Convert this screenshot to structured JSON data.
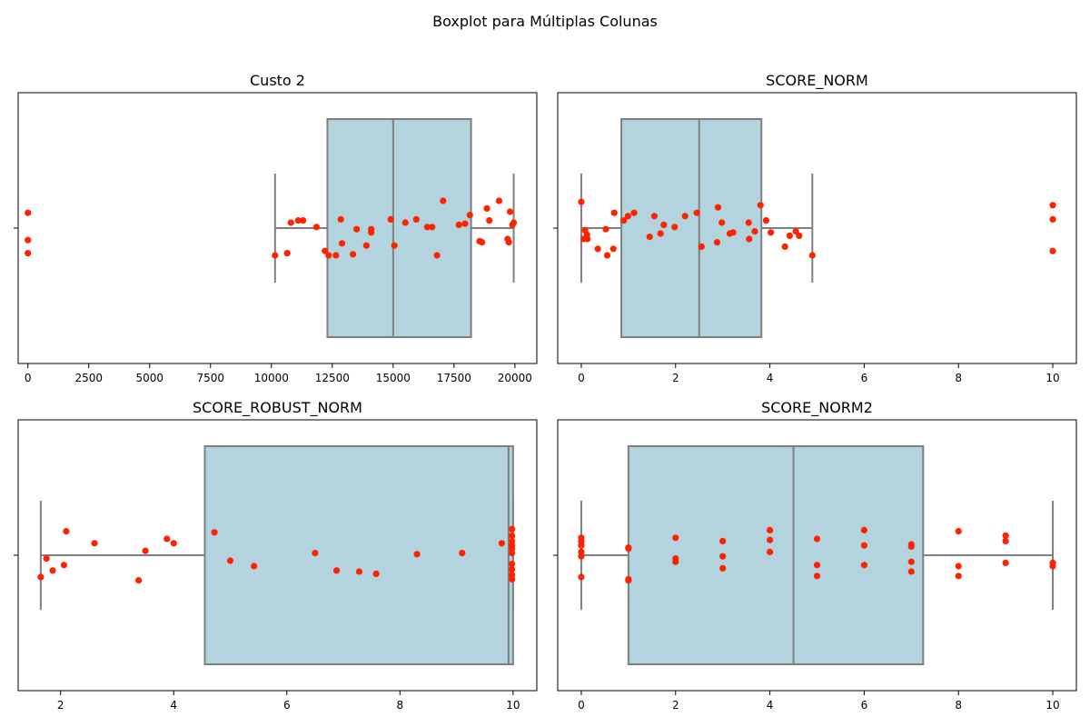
{
  "figure": {
    "title": "Boxplot para Múltiplas Colunas"
  },
  "colors": {
    "box_fill": "#b3d4de",
    "box_edge": "#7f7f7f",
    "points": "#ff2200",
    "axes": "#000000"
  },
  "chart_data": [
    {
      "type": "boxplot",
      "title": "Custo 2",
      "xlim": [
        -400,
        20900
      ],
      "xticks": [
        0,
        2500,
        5000,
        7500,
        10000,
        12500,
        15000,
        17500,
        20000
      ],
      "box": {
        "whisker_low": 10150,
        "q1": 12300,
        "median": 15000,
        "q3": 18200,
        "whisker_high": 19950
      },
      "points": [
        {
          "x": 0,
          "jitter": 0.14
        },
        {
          "x": 0,
          "jitter": -0.11
        },
        {
          "x": 0,
          "jitter": -0.23
        },
        {
          "x": 10150,
          "jitter": -0.25
        },
        {
          "x": 10650,
          "jitter": -0.23
        },
        {
          "x": 10800,
          "jitter": 0.05
        },
        {
          "x": 11100,
          "jitter": 0.07
        },
        {
          "x": 11300,
          "jitter": 0.07
        },
        {
          "x": 11850,
          "jitter": 0.01
        },
        {
          "x": 12200,
          "jitter": -0.21
        },
        {
          "x": 12350,
          "jitter": -0.25
        },
        {
          "x": 12650,
          "jitter": -0.25
        },
        {
          "x": 12850,
          "jitter": 0.08
        },
        {
          "x": 12900,
          "jitter": -0.14
        },
        {
          "x": 13350,
          "jitter": -0.24
        },
        {
          "x": 13500,
          "jitter": -0.01
        },
        {
          "x": 13900,
          "jitter": -0.16
        },
        {
          "x": 14100,
          "jitter": -0.04
        },
        {
          "x": 14100,
          "jitter": -0.01
        },
        {
          "x": 14900,
          "jitter": 0.08
        },
        {
          "x": 15050,
          "jitter": -0.16
        },
        {
          "x": 15500,
          "jitter": 0.05
        },
        {
          "x": 15950,
          "jitter": 0.08
        },
        {
          "x": 16400,
          "jitter": 0.01
        },
        {
          "x": 16600,
          "jitter": 0.01
        },
        {
          "x": 16800,
          "jitter": -0.25
        },
        {
          "x": 17050,
          "jitter": 0.25
        },
        {
          "x": 17700,
          "jitter": 0.03
        },
        {
          "x": 17950,
          "jitter": 0.04
        },
        {
          "x": 18150,
          "jitter": 0.12
        },
        {
          "x": 18550,
          "jitter": -0.12
        },
        {
          "x": 18650,
          "jitter": -0.13
        },
        {
          "x": 18850,
          "jitter": 0.18
        },
        {
          "x": 18950,
          "jitter": 0.07
        },
        {
          "x": 19350,
          "jitter": 0.25
        },
        {
          "x": 19700,
          "jitter": -0.1
        },
        {
          "x": 19750,
          "jitter": -0.13
        },
        {
          "x": 19800,
          "jitter": 0.15
        },
        {
          "x": 19900,
          "jitter": 0.03
        },
        {
          "x": 19950,
          "jitter": 0.05
        }
      ]
    },
    {
      "type": "boxplot",
      "title": "SCORE_NORM",
      "xlim": [
        -0.5,
        10.5
      ],
      "xticks": [
        0,
        2,
        4,
        6,
        8,
        10
      ],
      "box": {
        "whisker_low": 0,
        "q1": 0.85,
        "median": 2.5,
        "q3": 3.82,
        "whisker_high": 4.9
      },
      "points": [
        {
          "x": 0.0,
          "jitter": 0.24
        },
        {
          "x": 0.05,
          "jitter": -0.1
        },
        {
          "x": 0.08,
          "jitter": -0.02
        },
        {
          "x": 0.12,
          "jitter": -0.06
        },
        {
          "x": 0.13,
          "jitter": -0.1
        },
        {
          "x": 0.35,
          "jitter": -0.19
        },
        {
          "x": 0.52,
          "jitter": -0.01
        },
        {
          "x": 0.55,
          "jitter": -0.25
        },
        {
          "x": 0.68,
          "jitter": -0.19
        },
        {
          "x": 0.7,
          "jitter": 0.14
        },
        {
          "x": 0.9,
          "jitter": 0.07
        },
        {
          "x": 0.99,
          "jitter": 0.11
        },
        {
          "x": 1.12,
          "jitter": 0.14
        },
        {
          "x": 1.45,
          "jitter": -0.08
        },
        {
          "x": 1.55,
          "jitter": 0.11
        },
        {
          "x": 1.68,
          "jitter": -0.05
        },
        {
          "x": 1.75,
          "jitter": 0.03
        },
        {
          "x": 1.98,
          "jitter": 0.01
        },
        {
          "x": 2.2,
          "jitter": 0.11
        },
        {
          "x": 2.45,
          "jitter": 0.14
        },
        {
          "x": 2.55,
          "jitter": -0.17
        },
        {
          "x": 2.88,
          "jitter": -0.13
        },
        {
          "x": 2.9,
          "jitter": 0.19
        },
        {
          "x": 2.98,
          "jitter": 0.05
        },
        {
          "x": 3.15,
          "jitter": -0.05
        },
        {
          "x": 3.22,
          "jitter": -0.04
        },
        {
          "x": 3.55,
          "jitter": 0.05
        },
        {
          "x": 3.56,
          "jitter": -0.1
        },
        {
          "x": 3.68,
          "jitter": -0.03
        },
        {
          "x": 3.8,
          "jitter": 0.21
        },
        {
          "x": 3.92,
          "jitter": 0.07
        },
        {
          "x": 4.02,
          "jitter": -0.04
        },
        {
          "x": 4.32,
          "jitter": -0.17
        },
        {
          "x": 4.42,
          "jitter": -0.07
        },
        {
          "x": 4.55,
          "jitter": -0.03
        },
        {
          "x": 4.62,
          "jitter": -0.07
        },
        {
          "x": 4.9,
          "jitter": -0.25
        },
        {
          "x": 10,
          "jitter": 0.21
        },
        {
          "x": 10,
          "jitter": 0.08
        },
        {
          "x": 10,
          "jitter": -0.21
        }
      ]
    },
    {
      "type": "boxplot",
      "title": "SCORE_ROBUST_NORM",
      "xlim": [
        1.25,
        10.42
      ],
      "xticks": [
        2,
        4,
        6,
        8,
        10
      ],
      "box": {
        "whisker_low": 1.65,
        "q1": 4.55,
        "median": 9.92,
        "q3": 10.0,
        "whisker_high": 10.0
      },
      "points": [
        {
          "x": 1.65,
          "jitter": -0.2
        },
        {
          "x": 1.75,
          "jitter": -0.03
        },
        {
          "x": 1.86,
          "jitter": -0.14
        },
        {
          "x": 2.06,
          "jitter": -0.09
        },
        {
          "x": 2.1,
          "jitter": 0.22
        },
        {
          "x": 2.6,
          "jitter": 0.11
        },
        {
          "x": 3.38,
          "jitter": -0.23
        },
        {
          "x": 3.5,
          "jitter": 0.04
        },
        {
          "x": 3.88,
          "jitter": 0.15
        },
        {
          "x": 4.0,
          "jitter": 0.11
        },
        {
          "x": 4.72,
          "jitter": 0.21
        },
        {
          "x": 5.0,
          "jitter": -0.05
        },
        {
          "x": 5.42,
          "jitter": -0.1
        },
        {
          "x": 6.5,
          "jitter": 0.02
        },
        {
          "x": 6.88,
          "jitter": -0.14
        },
        {
          "x": 7.28,
          "jitter": -0.15
        },
        {
          "x": 7.58,
          "jitter": -0.17
        },
        {
          "x": 8.3,
          "jitter": 0.01
        },
        {
          "x": 9.1,
          "jitter": 0.02
        },
        {
          "x": 9.8,
          "jitter": 0.11
        },
        {
          "x": 9.98,
          "jitter": 0.24
        },
        {
          "x": 9.98,
          "jitter": 0.18
        },
        {
          "x": 9.98,
          "jitter": 0.13
        },
        {
          "x": 9.98,
          "jitter": 0.09
        },
        {
          "x": 9.98,
          "jitter": 0.06
        },
        {
          "x": 9.98,
          "jitter": 0.02
        },
        {
          "x": 9.98,
          "jitter": -0.08
        },
        {
          "x": 9.98,
          "jitter": -0.13
        },
        {
          "x": 9.98,
          "jitter": -0.18
        },
        {
          "x": 9.98,
          "jitter": -0.22
        }
      ]
    },
    {
      "type": "boxplot",
      "title": "SCORE_NORM2",
      "xlim": [
        -0.5,
        10.5
      ],
      "xticks": [
        0,
        2,
        4,
        6,
        8,
        10
      ],
      "box": {
        "whisker_low": 0,
        "q1": 1,
        "median": 4.5,
        "q3": 7.25,
        "whisker_high": 10
      },
      "points": [
        {
          "x": 0,
          "jitter": 0.16
        },
        {
          "x": 0,
          "jitter": 0.13
        },
        {
          "x": 0,
          "jitter": 0.09
        },
        {
          "x": 0,
          "jitter": 0.03
        },
        {
          "x": 0,
          "jitter": -0.01
        },
        {
          "x": 0,
          "jitter": -0.2
        },
        {
          "x": 1,
          "jitter": 0.07
        },
        {
          "x": 1,
          "jitter": 0.06
        },
        {
          "x": 1,
          "jitter": -0.22
        },
        {
          "x": 1,
          "jitter": -0.23
        },
        {
          "x": 2,
          "jitter": 0.16
        },
        {
          "x": 2,
          "jitter": -0.03
        },
        {
          "x": 2,
          "jitter": -0.06
        },
        {
          "x": 3,
          "jitter": 0.13
        },
        {
          "x": 3,
          "jitter": -0.01
        },
        {
          "x": 3,
          "jitter": -0.12
        },
        {
          "x": 4,
          "jitter": 0.23
        },
        {
          "x": 4,
          "jitter": 0.14
        },
        {
          "x": 4,
          "jitter": 0.03
        },
        {
          "x": 5,
          "jitter": 0.15
        },
        {
          "x": 5,
          "jitter": -0.09
        },
        {
          "x": 5,
          "jitter": -0.19
        },
        {
          "x": 6,
          "jitter": 0.23
        },
        {
          "x": 6,
          "jitter": 0.09
        },
        {
          "x": 6,
          "jitter": -0.09
        },
        {
          "x": 7,
          "jitter": 0.1
        },
        {
          "x": 7,
          "jitter": 0.08
        },
        {
          "x": 7,
          "jitter": -0.06
        },
        {
          "x": 7,
          "jitter": -0.15
        },
        {
          "x": 8,
          "jitter": 0.22
        },
        {
          "x": 8,
          "jitter": -0.1
        },
        {
          "x": 8,
          "jitter": -0.19
        },
        {
          "x": 9,
          "jitter": 0.18
        },
        {
          "x": 9,
          "jitter": 0.13
        },
        {
          "x": 9,
          "jitter": -0.07
        },
        {
          "x": 10,
          "jitter": -0.07
        },
        {
          "x": 10,
          "jitter": -0.1
        }
      ]
    }
  ]
}
